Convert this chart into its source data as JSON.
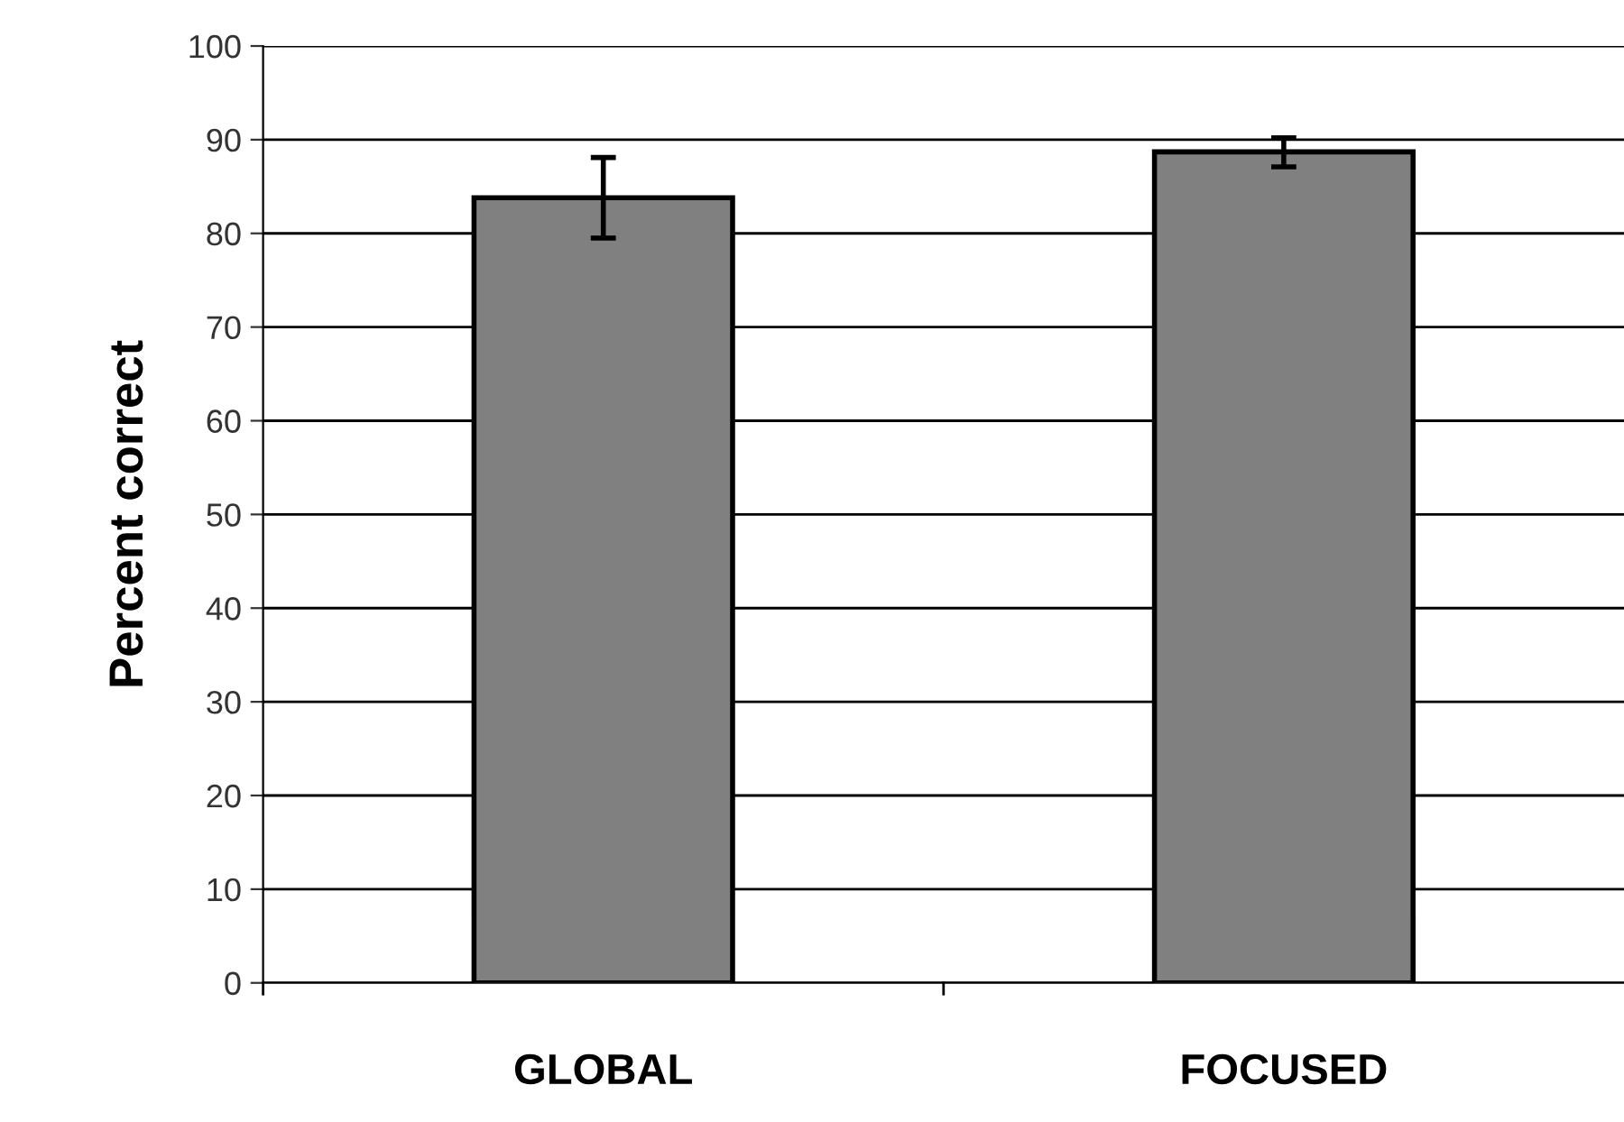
{
  "chart_data": {
    "type": "bar",
    "ylabel": "Percent correct",
    "categories": [
      "GLOBAL",
      "FOCUSED"
    ],
    "values": [
      83.8,
      88.7
    ],
    "color": "#808080",
    "errors": [
      [
        79.5,
        88.1
      ],
      [
        87.1,
        90.2
      ]
    ],
    "ylim": [
      0,
      100
    ],
    "yticks": [
      0,
      10,
      20,
      30,
      40,
      50,
      60,
      70,
      80,
      90,
      100
    ],
    "grid": "y",
    "legend": false
  }
}
